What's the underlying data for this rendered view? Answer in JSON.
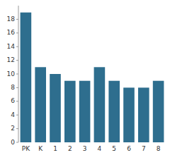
{
  "chart_data": {
    "type": "bar",
    "categories": [
      "PK",
      "K",
      "1",
      "2",
      "3",
      "4",
      "5",
      "6",
      "7",
      "8"
    ],
    "values": [
      19,
      11,
      10,
      9,
      9,
      11,
      9,
      8,
      8,
      9
    ],
    "color": "#2e6e8e",
    "ylim": [
      0,
      20
    ],
    "yticks": [
      0,
      2,
      4,
      6,
      8,
      10,
      12,
      14,
      16,
      18
    ],
    "grid": false
  }
}
